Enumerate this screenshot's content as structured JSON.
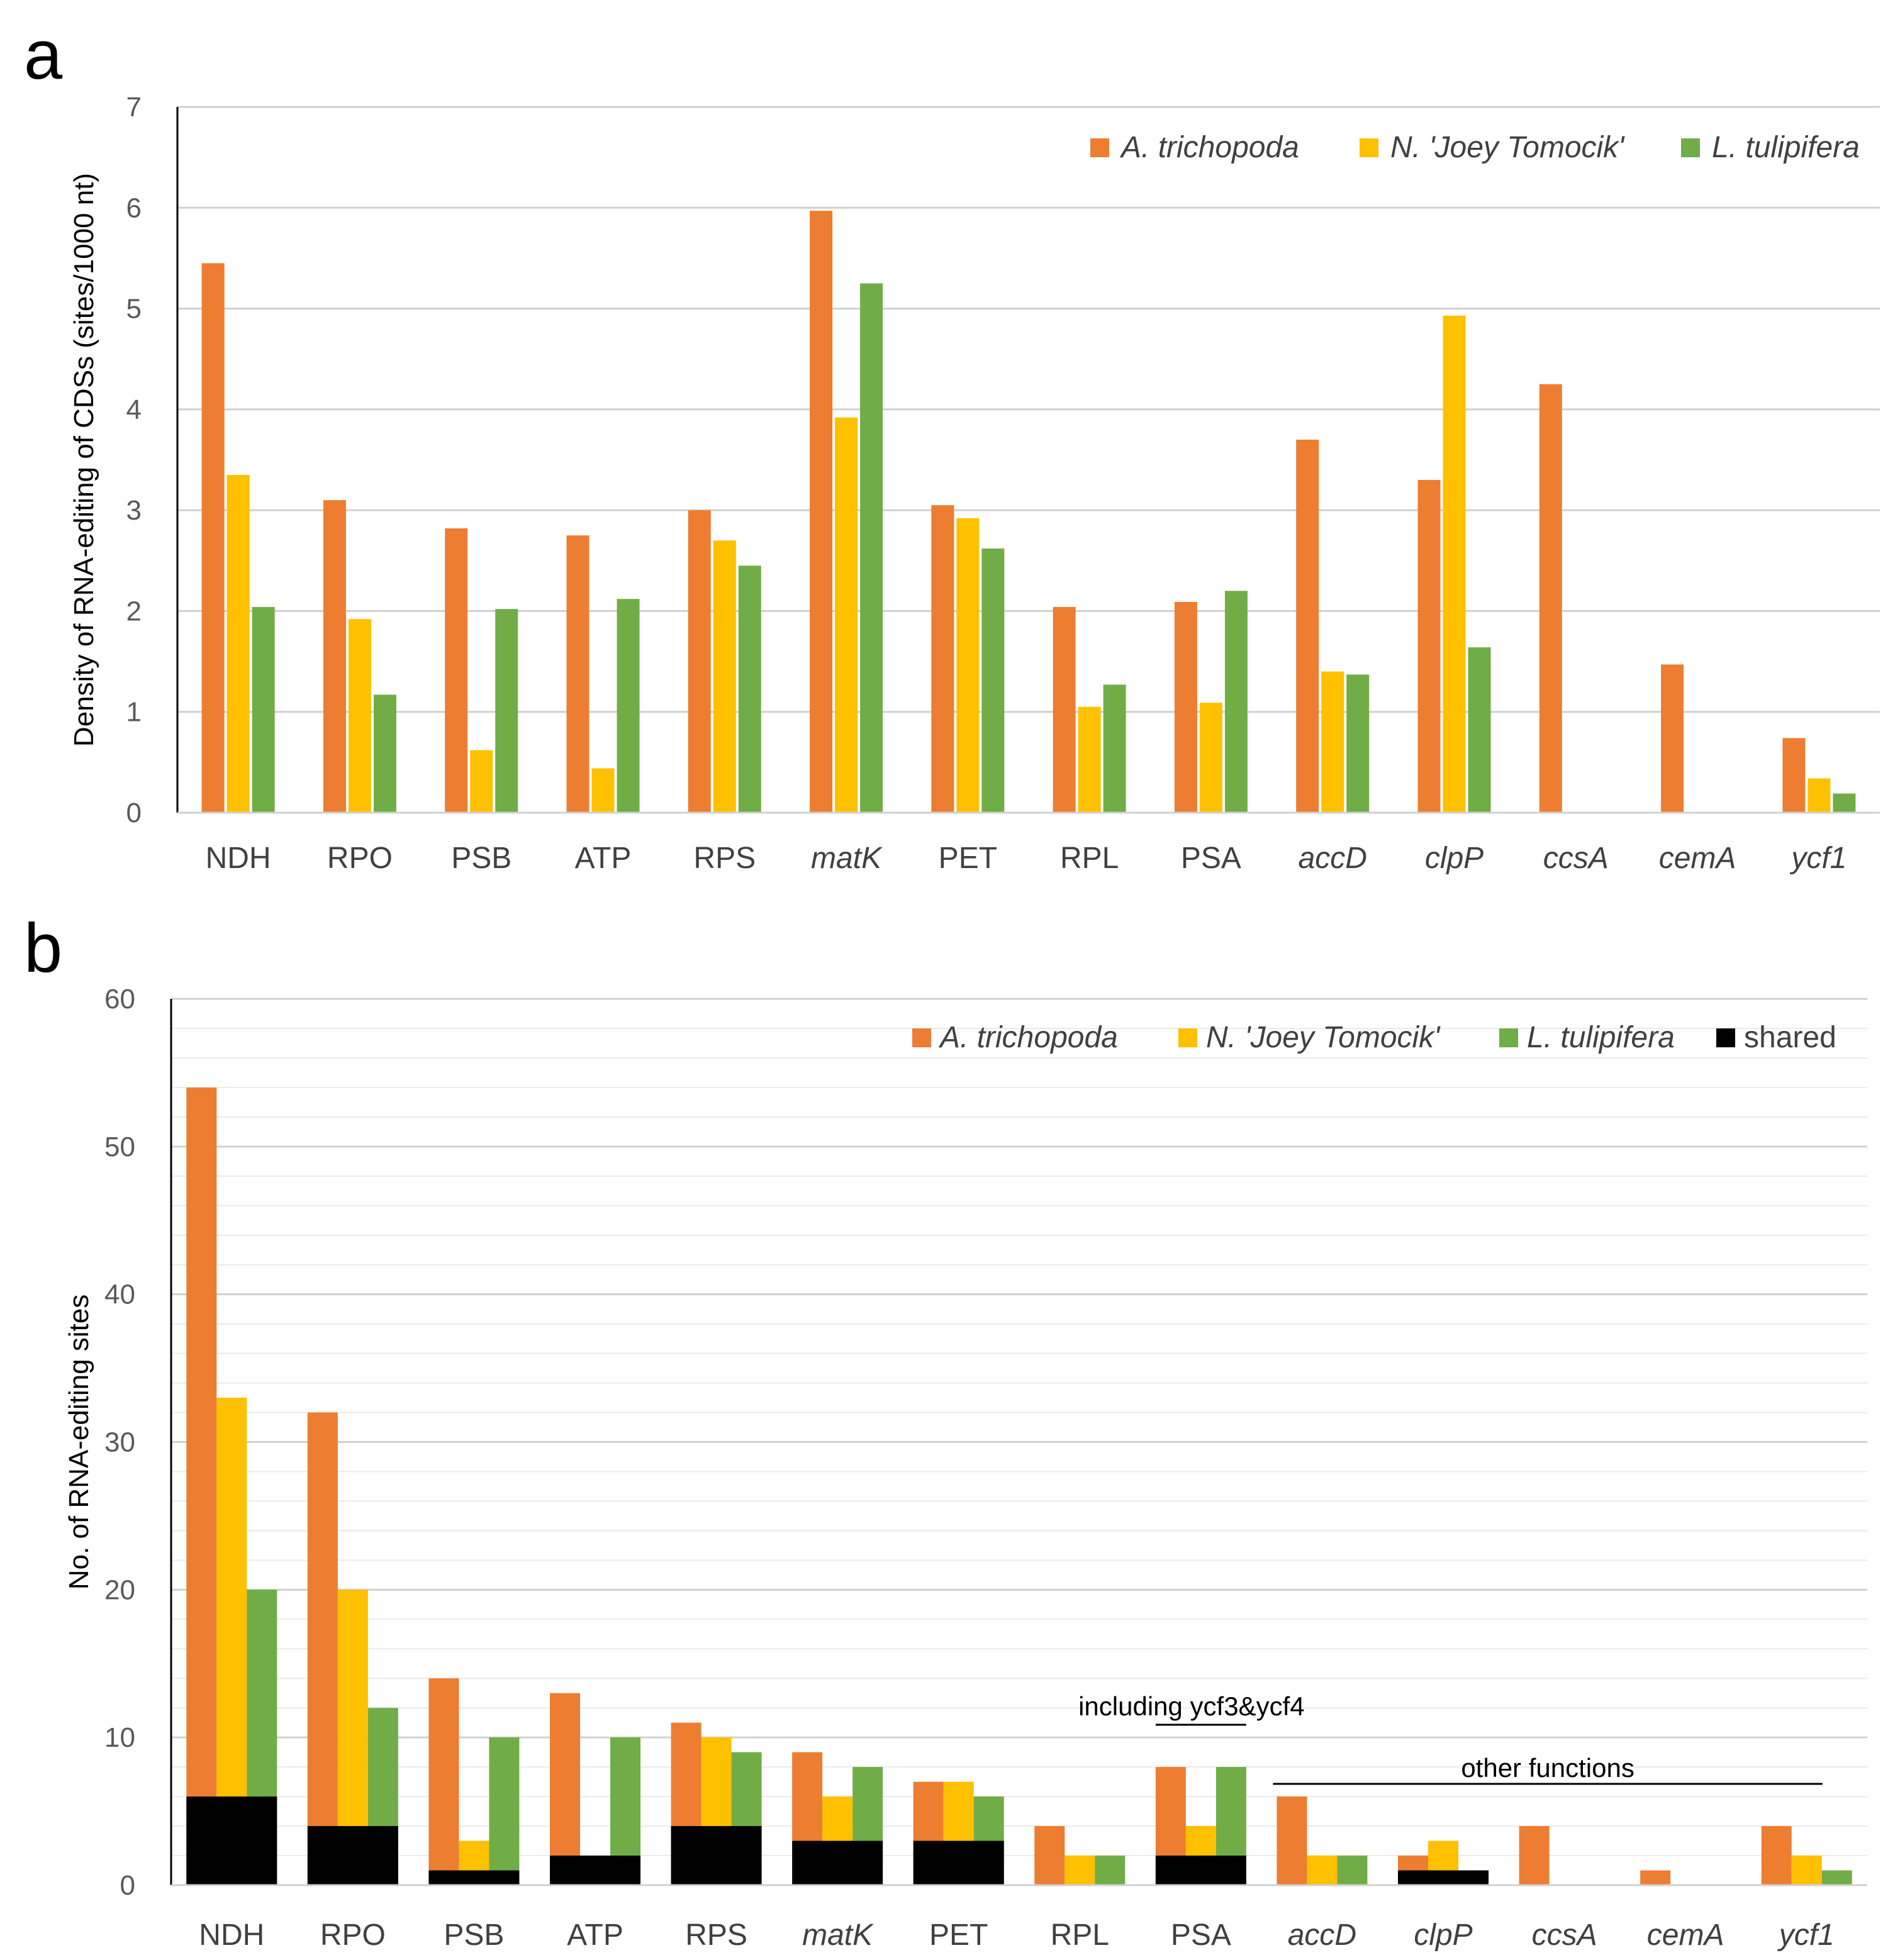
{
  "colors": {
    "orange": "#ED7D31",
    "yellow": "#FFC000",
    "green": "#70AD47",
    "black": "#000000"
  },
  "chart_data": [
    {
      "panel": "a",
      "type": "bar",
      "ylabel": "Density of RNA-editing of CDSs (sites/1000 nt)",
      "ylim": [
        0,
        7
      ],
      "yticks": [
        0,
        1,
        2,
        3,
        4,
        5,
        6,
        7
      ],
      "grid": "horizontal",
      "legend_position": "top-right",
      "categories": [
        "NDH",
        "RPO",
        "PSB",
        "ATP",
        "RPS",
        "matK",
        "PET",
        "RPL",
        "PSA",
        "accD",
        "clpP",
        "ccsA",
        "cemA",
        "ycf1"
      ],
      "italic_categories": [
        "matK",
        "accD",
        "clpP",
        "ccsA",
        "cemA",
        "ycf1"
      ],
      "series": [
        {
          "name": "A. trichopoda",
          "color": "orange",
          "values": [
            5.45,
            3.1,
            2.82,
            2.75,
            3.0,
            5.97,
            3.05,
            2.04,
            2.09,
            3.7,
            3.3,
            4.25,
            1.47,
            0.74
          ]
        },
        {
          "name": "N. 'Joey Tomocik'",
          "color": "yellow",
          "values": [
            3.35,
            1.92,
            0.62,
            0.44,
            2.7,
            3.92,
            2.92,
            1.05,
            1.09,
            1.4,
            4.93,
            0,
            0,
            0.34
          ]
        },
        {
          "name": "L. tulipifera",
          "color": "green",
          "values": [
            2.04,
            1.17,
            2.02,
            2.12,
            2.45,
            5.25,
            2.62,
            1.27,
            2.2,
            1.37,
            1.64,
            0,
            0,
            0.19
          ]
        }
      ]
    },
    {
      "panel": "b",
      "type": "bar",
      "ylabel": "No. of RNA-editing sites",
      "ylim": [
        0,
        60
      ],
      "yticks": [
        0,
        10,
        20,
        30,
        40,
        50,
        60
      ],
      "minor_grid_step": 2,
      "grid": "horizontal",
      "legend_position": "top-right",
      "categories": [
        "NDH",
        "RPO",
        "PSB",
        "ATP",
        "RPS",
        "matK",
        "PET",
        "RPL",
        "PSA",
        "accD",
        "clpP",
        "ccsA",
        "cemA",
        "ycf1"
      ],
      "italic_categories": [
        "matK",
        "accD",
        "clpP",
        "ccsA",
        "cemA",
        "ycf1"
      ],
      "series": [
        {
          "name": "A. trichopoda",
          "color": "orange",
          "values": [
            54,
            32,
            14,
            13,
            11,
            9,
            7,
            4,
            8,
            6,
            2,
            4,
            1,
            4
          ]
        },
        {
          "name": "N. 'Joey Tomocik'",
          "color": "yellow",
          "values": [
            33,
            20,
            3,
            0,
            10,
            6,
            7,
            2,
            4,
            2,
            3,
            0,
            0,
            2
          ]
        },
        {
          "name": "L. tulipifera",
          "color": "green",
          "values": [
            20,
            12,
            10,
            10,
            9,
            8,
            6,
            2,
            8,
            2,
            0,
            0,
            0,
            1
          ]
        }
      ],
      "shared": {
        "name": "shared",
        "color": "black",
        "values": [
          6,
          4,
          1,
          2,
          4,
          3,
          3,
          0,
          2,
          0,
          1,
          0,
          0,
          0
        ]
      },
      "annotations": [
        {
          "text": "including ycf3&ycf4",
          "category": "PSA"
        },
        {
          "text": "other functions",
          "from_category": "accD",
          "to_category": "ycf1"
        }
      ]
    }
  ]
}
